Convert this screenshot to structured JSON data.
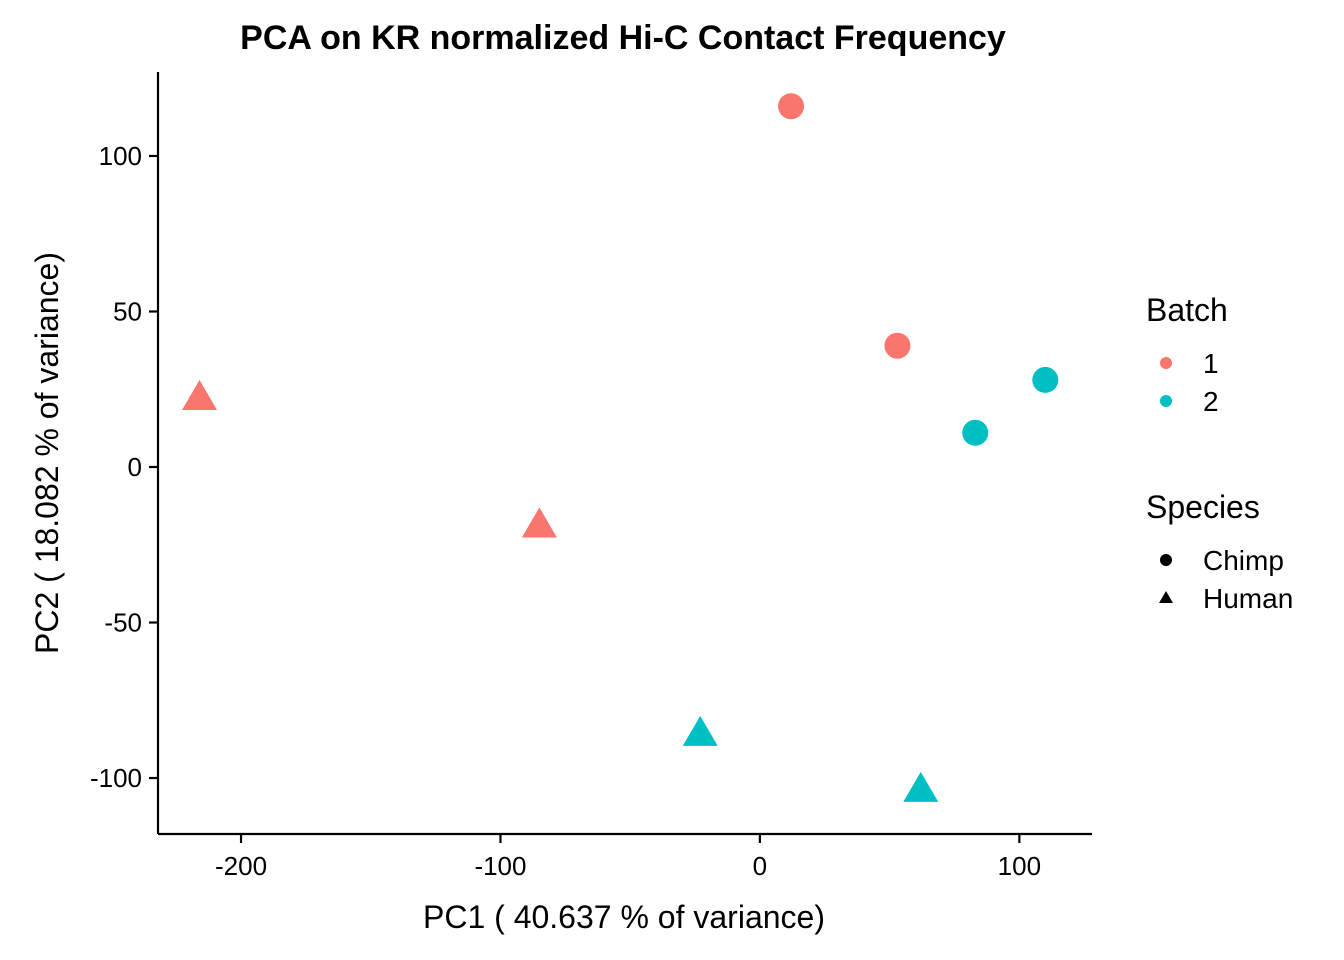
{
  "chart_data": {
    "type": "scatter",
    "title": "PCA on KR normalized Hi-C Contact Frequency",
    "xlabel": "PC1 ( 40.637 % of variance)",
    "ylabel": "PC2 ( 18.082 % of variance)",
    "xlim": [
      -232,
      128
    ],
    "ylim": [
      -118,
      127
    ],
    "x_ticks": [
      -200,
      -100,
      0,
      100
    ],
    "x_tick_labels": [
      "-200",
      "-100",
      "0",
      "100"
    ],
    "y_ticks": [
      -100,
      -50,
      0,
      50,
      100
    ],
    "y_tick_labels": [
      "-100",
      "-50",
      "0",
      "50",
      "100"
    ],
    "grid": false,
    "legend_placement": "right",
    "color_legend": {
      "title": "Batch",
      "entries": [
        {
          "label": "1",
          "color": "#F8766D"
        },
        {
          "label": "2",
          "color": "#00BFC4"
        }
      ]
    },
    "shape_legend": {
      "title": "Species",
      "entries": [
        {
          "label": "Chimp",
          "shape": "circle"
        },
        {
          "label": "Human",
          "shape": "triangle"
        }
      ]
    },
    "points": [
      {
        "x": 12,
        "y": 116,
        "batch": "1",
        "species": "Chimp"
      },
      {
        "x": 53,
        "y": 39,
        "batch": "1",
        "species": "Chimp"
      },
      {
        "x": 110,
        "y": 28,
        "batch": "2",
        "species": "Chimp"
      },
      {
        "x": 83,
        "y": 11,
        "batch": "2",
        "species": "Chimp"
      },
      {
        "x": -216,
        "y": 22,
        "batch": "1",
        "species": "Human"
      },
      {
        "x": -85,
        "y": -19,
        "batch": "1",
        "species": "Human"
      },
      {
        "x": -23,
        "y": -86,
        "batch": "2",
        "species": "Human"
      },
      {
        "x": 62,
        "y": -104,
        "batch": "2",
        "species": "Human"
      }
    ]
  }
}
